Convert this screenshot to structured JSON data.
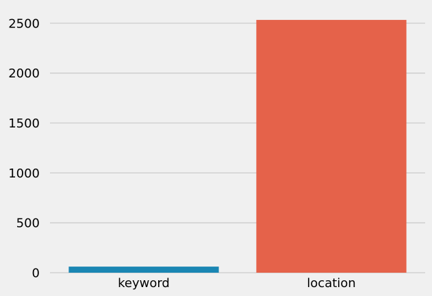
{
  "chart_data": {
    "type": "bar",
    "categories": [
      "keyword",
      "location"
    ],
    "values": [
      61,
      2533
    ],
    "ylim": [
      0,
      2600
    ],
    "yticks": [
      0,
      500,
      1000,
      1500,
      2000,
      2500
    ],
    "grid": true,
    "colors": [
      "#1a86b3",
      "#e5624a"
    ],
    "gridColor": "#cbcbcb",
    "background": "#f0f0f0"
  }
}
